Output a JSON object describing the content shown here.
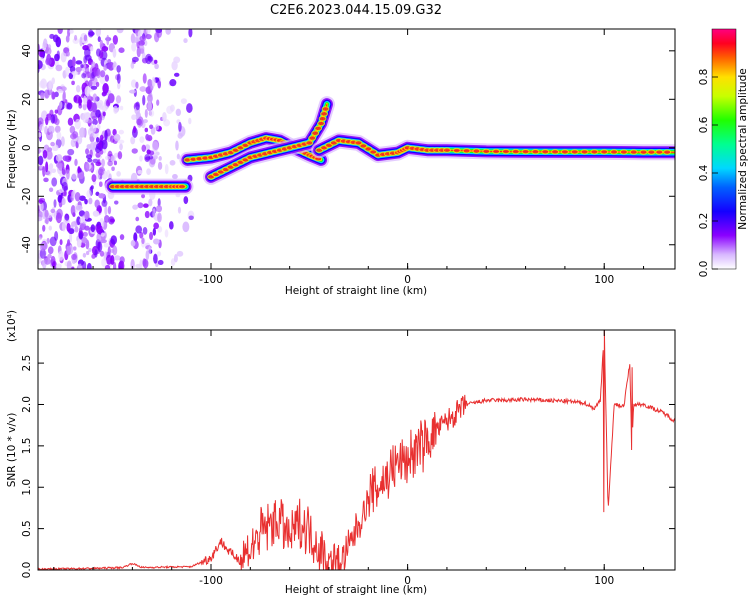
{
  "title": "C2E6.2023.044.15.09.G32",
  "colors": {
    "snr_line": "#e83030",
    "axis": "#000000"
  },
  "chart_data": [
    {
      "type": "heatmap",
      "xlabel": "Height of straight line (km)",
      "ylabel": "Frequency (Hz)",
      "xlim": [
        -188,
        136
      ],
      "ylim": [
        -50,
        49
      ],
      "xticks": [
        -100,
        0,
        100
      ],
      "yticks": [
        -40,
        -20,
        0,
        20,
        40
      ],
      "colorbar": {
        "label": "Normalized spectral amplitude",
        "range": [
          0,
          1
        ],
        "ticks": [
          0.0,
          0.2,
          0.4,
          0.6,
          0.8
        ]
      },
      "ridges": [
        {
          "x": [
            -150,
            -140,
            -130,
            -120,
            -113
          ],
          "y": [
            -16,
            -16,
            -16,
            -16,
            -16
          ]
        },
        {
          "x": [
            -112,
            -100,
            -90,
            -80,
            -72,
            -65,
            -58,
            -50,
            -44
          ],
          "y": [
            -5,
            -4,
            -2,
            2,
            4,
            3,
            0,
            -3,
            -5
          ]
        },
        {
          "x": [
            -100,
            -90,
            -80,
            -70,
            -60,
            -50,
            -44,
            -41
          ],
          "y": [
            -12,
            -8,
            -4,
            -2,
            0,
            2,
            10,
            18
          ]
        },
        {
          "x": [
            -45,
            -35,
            -25,
            -15,
            -5,
            0,
            10,
            20,
            40,
            60,
            80,
            100,
            120,
            136
          ],
          "y": [
            -1,
            3,
            2,
            -3,
            -2,
            0,
            -1,
            -1,
            -1.5,
            -1.6,
            -1.7,
            -1.7,
            -1.8,
            -1.8
          ]
        }
      ]
    },
    {
      "type": "line",
      "xlabel": "Height of straight line (km)",
      "ylabel": "SNR (10 * v/v)",
      "y_scale_label": "(x10⁴)",
      "xlim": [
        -188,
        136
      ],
      "ylim": [
        0,
        2.9
      ],
      "xticks": [
        -100,
        0,
        100
      ],
      "yticks": [
        0.0,
        0.5,
        1.0,
        1.5,
        2.0,
        2.5
      ],
      "series": [
        {
          "x": [
            -188,
            -160,
            -145,
            -140,
            -135,
            -110,
            -100,
            -95,
            -90,
            -85,
            -80,
            -75,
            -70,
            -65,
            -60,
            -55,
            -50,
            -45,
            -40,
            -35,
            -30,
            -25,
            -20,
            -15,
            -10,
            -5,
            0,
            5,
            10,
            15,
            20,
            25,
            30,
            40,
            50,
            60,
            70,
            80,
            90,
            95,
            98,
            100,
            102,
            105,
            110,
            113,
            114,
            115,
            120,
            125,
            130,
            136
          ],
          "y": [
            0.01,
            0.02,
            0.03,
            0.08,
            0.03,
            0.04,
            0.15,
            0.35,
            0.2,
            0.12,
            0.25,
            0.45,
            0.55,
            0.6,
            0.4,
            0.55,
            0.5,
            0.25,
            0.08,
            0.05,
            0.25,
            0.55,
            0.85,
            1.0,
            1.15,
            1.3,
            1.35,
            1.45,
            1.55,
            1.7,
            1.8,
            1.9,
            2.0,
            2.05,
            2.05,
            2.06,
            2.05,
            2.04,
            2.02,
            1.95,
            2.05,
            2.9,
            0.7,
            2.0,
            1.98,
            2.5,
            1.5,
            2.0,
            2.0,
            1.95,
            1.9,
            1.8
          ]
        }
      ]
    }
  ]
}
